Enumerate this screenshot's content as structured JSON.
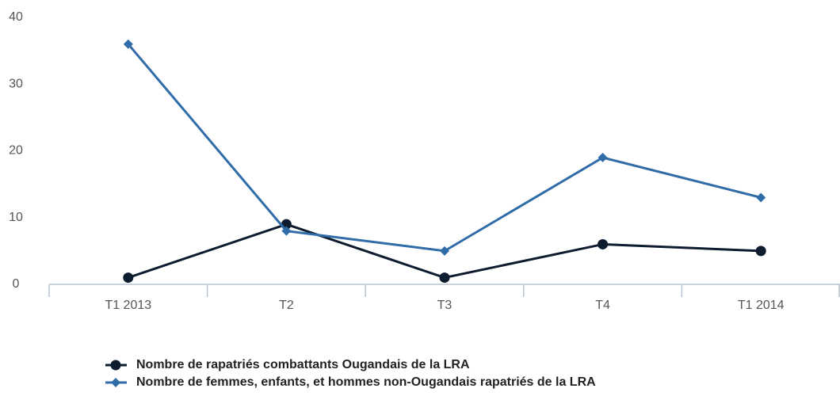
{
  "chart_data": {
    "type": "line",
    "categories": [
      "T1 2013",
      "T2",
      "T3",
      "T4",
      "T1 2014"
    ],
    "series": [
      {
        "name": "Nombre de rapatriés combattants Ougandais de la LRA",
        "color": "#0e1c30",
        "marker": "circle",
        "values": [
          1,
          9,
          1,
          6,
          5
        ]
      },
      {
        "name": "Nombre de femmes, enfants, et hommes non-Ougandais rapatriés de la LRA",
        "color": "#2f6ca8",
        "marker": "diamond",
        "values": [
          36,
          8,
          5,
          19,
          13
        ]
      }
    ],
    "ylim": [
      0,
      40
    ],
    "yticks": [
      0,
      10,
      20,
      30,
      40
    ],
    "grid": false,
    "legend": "bottom"
  }
}
